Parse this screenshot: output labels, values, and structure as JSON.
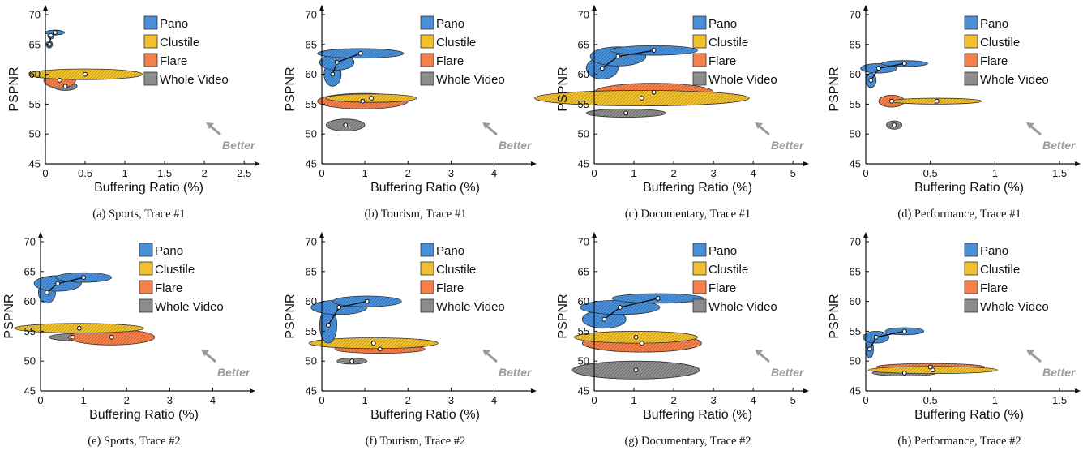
{
  "figure": {
    "series_colors": {
      "Pano": "#4a90d9",
      "Clustile": "#f0c030",
      "Flare": "#f5804a",
      "Whole Video": "#8c8c8c"
    },
    "series_outline": "#333333"
  },
  "chart_data": [
    {
      "type": "scatter",
      "caption": "(a) Sports, Trace #1",
      "xlabel": "Buffering Ratio (%)",
      "ylabel": "PSPNR",
      "xlim": [
        0,
        2.6
      ],
      "ylim": [
        45,
        70
      ],
      "x_ticks": [
        0,
        0.5,
        1,
        1.5,
        2,
        2.5
      ],
      "x_tick_labels": [
        "0",
        "0.5",
        "1",
        "1.5",
        "2",
        "2.5"
      ],
      "y_ticks": [
        45,
        50,
        55,
        60,
        65,
        70
      ],
      "legend": [
        "Pano",
        "Clustile",
        "Flare",
        "Whole Video"
      ],
      "legend_position": "top-right",
      "annotation": "Better",
      "series": [
        {
          "name": "Pano",
          "points": [
            {
              "x": 0.05,
              "y": 65.0,
              "sx": 0.04,
              "sy": 0.6
            },
            {
              "x": 0.07,
              "y": 66.5,
              "sx": 0.04,
              "sy": 0.6
            },
            {
              "x": 0.12,
              "y": 67.0,
              "sx": 0.12,
              "sy": 0.4
            }
          ]
        },
        {
          "name": "Clustile",
          "points": [
            {
              "x": 0.5,
              "y": 60.0,
              "sx": 0.72,
              "sy": 0.9
            }
          ]
        },
        {
          "name": "Flare",
          "points": [
            {
              "x": 0.18,
              "y": 59.0,
              "sx": 0.2,
              "sy": 1.3
            }
          ]
        },
        {
          "name": "Whole Video",
          "points": [
            {
              "x": 0.25,
              "y": 58.0,
              "sx": 0.15,
              "sy": 0.7
            }
          ]
        }
      ]
    },
    {
      "type": "scatter",
      "caption": "(b) Tourism, Trace #1",
      "xlabel": "Buffering Ratio (%)",
      "ylabel": "PSPNR",
      "xlim": [
        0,
        4.8
      ],
      "ylim": [
        45,
        70
      ],
      "x_ticks": [
        0,
        1,
        2,
        3,
        4
      ],
      "x_tick_labels": [
        "0",
        "1",
        "2",
        "3",
        "4"
      ],
      "y_ticks": [
        45,
        50,
        55,
        60,
        65,
        70
      ],
      "legend": [
        "Pano",
        "Clustile",
        "Flare",
        "Whole Video"
      ],
      "legend_position": "top-right",
      "annotation": "Better",
      "series": [
        {
          "name": "Pano",
          "points": [
            {
              "x": 0.25,
              "y": 60.0,
              "sx": 0.2,
              "sy": 2.0
            },
            {
              "x": 0.35,
              "y": 62.0,
              "sx": 0.4,
              "sy": 1.3
            },
            {
              "x": 0.9,
              "y": 63.5,
              "sx": 1.0,
              "sy": 0.8
            }
          ]
        },
        {
          "name": "Clustile",
          "points": [
            {
              "x": 1.15,
              "y": 56.0,
              "sx": 1.05,
              "sy": 0.7
            }
          ]
        },
        {
          "name": "Flare",
          "points": [
            {
              "x": 0.95,
              "y": 55.5,
              "sx": 1.05,
              "sy": 1.3
            }
          ]
        },
        {
          "name": "Whole Video",
          "points": [
            {
              "x": 0.55,
              "y": 51.5,
              "sx": 0.45,
              "sy": 1.0
            }
          ]
        }
      ]
    },
    {
      "type": "scatter",
      "caption": "(c) Documentary, Trace #1",
      "xlabel": "Buffering Ratio (%)",
      "ylabel": "PSPNR",
      "xlim": [
        0,
        5.2
      ],
      "ylim": [
        45,
        70
      ],
      "x_ticks": [
        0,
        1,
        2,
        3,
        4,
        5
      ],
      "x_tick_labels": [
        "0",
        "1",
        "2",
        "3",
        "4",
        "5"
      ],
      "y_ticks": [
        45,
        50,
        55,
        60,
        65,
        70
      ],
      "legend": [
        "Pano",
        "Clustile",
        "Flare",
        "Whole Video"
      ],
      "legend_position": "top-right",
      "annotation": "Better",
      "series": [
        {
          "name": "Pano",
          "points": [
            {
              "x": 0.2,
              "y": 61.0,
              "sx": 0.4,
              "sy": 1.8
            },
            {
              "x": 0.6,
              "y": 63.0,
              "sx": 0.7,
              "sy": 1.6
            },
            {
              "x": 1.5,
              "y": 64.0,
              "sx": 1.1,
              "sy": 0.8
            }
          ]
        },
        {
          "name": "Clustile",
          "points": [
            {
              "x": 1.2,
              "y": 56.0,
              "sx": 2.7,
              "sy": 1.3
            }
          ]
        },
        {
          "name": "Flare",
          "points": [
            {
              "x": 1.5,
              "y": 57.0,
              "sx": 1.5,
              "sy": 1.5
            }
          ]
        },
        {
          "name": "Whole Video",
          "points": [
            {
              "x": 0.8,
              "y": 53.5,
              "sx": 1.0,
              "sy": 0.7
            }
          ]
        }
      ]
    },
    {
      "type": "scatter",
      "caption": "(d) Performance, Trace #1",
      "xlabel": "Buffering Ratio (%)",
      "ylabel": "PSPNR",
      "xlim": [
        0,
        1.6
      ],
      "ylim": [
        45,
        70
      ],
      "x_ticks": [
        0,
        0.5,
        1,
        1.5
      ],
      "x_tick_labels": [
        "0",
        "0.5",
        "1",
        "1.5"
      ],
      "y_ticks": [
        45,
        50,
        55,
        60,
        65,
        70
      ],
      "legend": [
        "Pano",
        "Clustile",
        "Flare",
        "Whole Video"
      ],
      "legend_position": "top-right",
      "annotation": "Better",
      "series": [
        {
          "name": "Pano",
          "points": [
            {
              "x": 0.04,
              "y": 59.0,
              "sx": 0.04,
              "sy": 1.2
            },
            {
              "x": 0.1,
              "y": 61.0,
              "sx": 0.14,
              "sy": 0.8
            },
            {
              "x": 0.3,
              "y": 61.8,
              "sx": 0.18,
              "sy": 0.5
            }
          ]
        },
        {
          "name": "Clustile",
          "points": [
            {
              "x": 0.55,
              "y": 55.5,
              "sx": 0.35,
              "sy": 0.5
            }
          ]
        },
        {
          "name": "Flare",
          "points": [
            {
              "x": 0.2,
              "y": 55.5,
              "sx": 0.1,
              "sy": 1.0
            }
          ]
        },
        {
          "name": "Whole Video",
          "points": [
            {
              "x": 0.22,
              "y": 51.5,
              "sx": 0.06,
              "sy": 0.7
            }
          ]
        }
      ]
    },
    {
      "type": "scatter",
      "caption": "(e) Sports, Trace #2",
      "xlabel": "Buffering Ratio (%)",
      "ylabel": "PSPNR",
      "xlim": [
        0,
        4.8
      ],
      "ylim": [
        45,
        70
      ],
      "x_ticks": [
        0,
        1,
        2,
        3,
        4
      ],
      "x_tick_labels": [
        "0",
        "1",
        "2",
        "3",
        "4"
      ],
      "y_ticks": [
        45,
        50,
        55,
        60,
        65,
        70
      ],
      "legend": [
        "Pano",
        "Clustile",
        "Flare",
        "Whole Video"
      ],
      "legend_position": "top-right",
      "annotation": "Better",
      "series": [
        {
          "name": "Pano",
          "points": [
            {
              "x": 0.15,
              "y": 61.5,
              "sx": 0.2,
              "sy": 1.8
            },
            {
              "x": 0.4,
              "y": 63.0,
              "sx": 0.55,
              "sy": 1.3
            },
            {
              "x": 1.0,
              "y": 64.0,
              "sx": 0.65,
              "sy": 0.8
            }
          ]
        },
        {
          "name": "Clustile",
          "points": [
            {
              "x": 0.9,
              "y": 55.5,
              "sx": 1.5,
              "sy": 0.8
            }
          ]
        },
        {
          "name": "Flare",
          "points": [
            {
              "x": 1.65,
              "y": 54.0,
              "sx": 1.0,
              "sy": 1.3
            }
          ]
        },
        {
          "name": "Whole Video",
          "points": [
            {
              "x": 0.75,
              "y": 54.0,
              "sx": 0.55,
              "sy": 0.6
            }
          ]
        }
      ]
    },
    {
      "type": "scatter",
      "caption": "(f) Tourism, Trace #2",
      "xlabel": "Buffering Ratio (%)",
      "ylabel": "PSPNR",
      "xlim": [
        0,
        4.8
      ],
      "ylim": [
        45,
        70
      ],
      "x_ticks": [
        0,
        1,
        2,
        3,
        4
      ],
      "x_tick_labels": [
        "0",
        "1",
        "2",
        "3",
        "4"
      ],
      "y_ticks": [
        45,
        50,
        55,
        60,
        65,
        70
      ],
      "legend": [
        "Pano",
        "Clustile",
        "Flare",
        "Whole Video"
      ],
      "legend_position": "top-right",
      "annotation": "Better",
      "series": [
        {
          "name": "Pano",
          "points": [
            {
              "x": 0.15,
              "y": 56.0,
              "sx": 0.2,
              "sy": 3.0
            },
            {
              "x": 0.4,
              "y": 59.0,
              "sx": 0.65,
              "sy": 1.2
            },
            {
              "x": 1.05,
              "y": 60.0,
              "sx": 0.8,
              "sy": 0.9
            }
          ]
        },
        {
          "name": "Clustile",
          "points": [
            {
              "x": 1.2,
              "y": 53.0,
              "sx": 1.5,
              "sy": 0.9
            }
          ]
        },
        {
          "name": "Flare",
          "points": [
            {
              "x": 1.35,
              "y": 52.0,
              "sx": 1.05,
              "sy": 0.7
            }
          ]
        },
        {
          "name": "Whole Video",
          "points": [
            {
              "x": 0.7,
              "y": 50.0,
              "sx": 0.35,
              "sy": 0.5
            }
          ]
        }
      ]
    },
    {
      "type": "scatter",
      "caption": "(g) Documentary, Trace #2",
      "xlabel": "Buffering Ratio (%)",
      "ylabel": "PSPNR",
      "xlim": [
        0,
        5.2
      ],
      "ylim": [
        45,
        70
      ],
      "x_ticks": [
        0,
        1,
        2,
        3,
        4,
        5
      ],
      "x_tick_labels": [
        "0",
        "1",
        "2",
        "3",
        "4",
        "5"
      ],
      "y_ticks": [
        45,
        50,
        55,
        60,
        65,
        70
      ],
      "legend": [
        "Pano",
        "Clustile",
        "Flare",
        "Whole Video"
      ],
      "legend_position": "top-right",
      "annotation": "Better",
      "series": [
        {
          "name": "Pano",
          "points": [
            {
              "x": 0.25,
              "y": 57.0,
              "sx": 0.55,
              "sy": 1.5
            },
            {
              "x": 0.65,
              "y": 59.0,
              "sx": 1.0,
              "sy": 1.2
            },
            {
              "x": 1.6,
              "y": 60.5,
              "sx": 1.15,
              "sy": 0.8
            }
          ]
        },
        {
          "name": "Clustile",
          "points": [
            {
              "x": 1.05,
              "y": 54.0,
              "sx": 1.55,
              "sy": 1.0
            }
          ]
        },
        {
          "name": "Flare",
          "points": [
            {
              "x": 1.2,
              "y": 53.0,
              "sx": 1.5,
              "sy": 1.5
            }
          ]
        },
        {
          "name": "Whole Video",
          "points": [
            {
              "x": 1.05,
              "y": 48.5,
              "sx": 1.6,
              "sy": 1.5
            }
          ]
        }
      ]
    },
    {
      "type": "scatter",
      "caption": "(h) Performance, Trace #2",
      "xlabel": "Buffering Ratio (%)",
      "ylabel": "PSPNR",
      "xlim": [
        0,
        1.6
      ],
      "ylim": [
        45,
        70
      ],
      "x_ticks": [
        0,
        0.5,
        1,
        1.5
      ],
      "x_tick_labels": [
        "0",
        "0.5",
        "1",
        "1.5"
      ],
      "y_ticks": [
        45,
        50,
        55,
        60,
        65,
        70
      ],
      "legend": [
        "Pano",
        "Clustile",
        "Flare",
        "Whole Video"
      ],
      "legend_position": "top-right",
      "annotation": "Better",
      "series": [
        {
          "name": "Pano",
          "points": [
            {
              "x": 0.03,
              "y": 52.0,
              "sx": 0.03,
              "sy": 1.5
            },
            {
              "x": 0.08,
              "y": 54.0,
              "sx": 0.1,
              "sy": 1.0
            },
            {
              "x": 0.3,
              "y": 55.0,
              "sx": 0.15,
              "sy": 0.6
            }
          ]
        },
        {
          "name": "Clustile",
          "points": [
            {
              "x": 0.52,
              "y": 48.5,
              "sx": 0.5,
              "sy": 0.6
            }
          ]
        },
        {
          "name": "Flare",
          "points": [
            {
              "x": 0.5,
              "y": 49.0,
              "sx": 0.42,
              "sy": 0.6
            }
          ]
        },
        {
          "name": "Whole Video",
          "points": [
            {
              "x": 0.3,
              "y": 48.0,
              "sx": 0.25,
              "sy": 0.5
            }
          ]
        }
      ]
    }
  ]
}
